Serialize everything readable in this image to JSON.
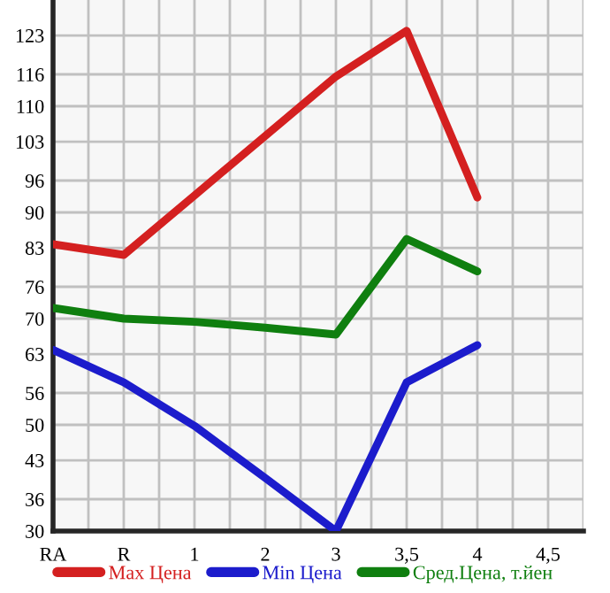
{
  "chart_data": {
    "type": "line",
    "categories": [
      "RA",
      "R",
      "1",
      "2",
      "3",
      "3,5",
      "4",
      "4,5"
    ],
    "series": [
      {
        "name": "Max Цена",
        "color": "#d42020",
        "values": [
          84,
          82,
          93.2,
          104.4,
          115.6,
          124.2,
          92.8,
          null
        ]
      },
      {
        "name": "Min Цена",
        "color": "#1c1ccc",
        "values": [
          64.1,
          58,
          49.8,
          40,
          30,
          58,
          65,
          null
        ]
      },
      {
        "name": "Сред.Цена, т.йен",
        "color": "#0f7f0f",
        "values": [
          72,
          70,
          69.4,
          68.3,
          67,
          85,
          78.9,
          null
        ]
      }
    ],
    "ylim": [
      30,
      130
    ],
    "yticks": [
      30,
      36,
      {
        "value": 43.33,
        "label": "43"
      },
      50,
      56,
      {
        "value": 63.33,
        "label": "63"
      },
      70,
      76,
      {
        "value": 83.33,
        "label": "83"
      },
      90,
      96,
      {
        "value": 103.33,
        "label": "103"
      },
      110,
      116,
      {
        "value": 123.33,
        "label": "123"
      }
    ],
    "grid": true,
    "legend": "bottom",
    "marker": "none",
    "line_style": "solid"
  }
}
